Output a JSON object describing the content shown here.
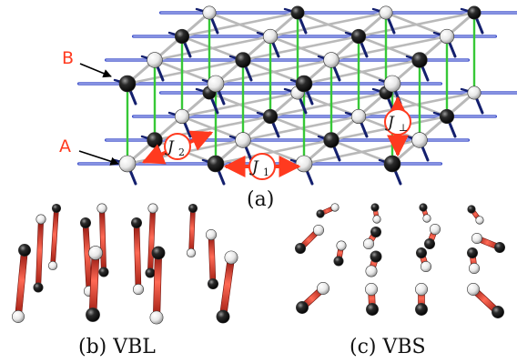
{
  "panels": {
    "a": {
      "caption": "(a)"
    },
    "b": {
      "caption": "(b) VBL"
    },
    "c": {
      "caption": "(c) VBS"
    }
  },
  "sublattice_labels": {
    "b": "B",
    "a": "A"
  },
  "couplings": {
    "j2": {
      "symbol": "J",
      "sub": "2"
    },
    "j1": {
      "symbol": "J",
      "sub": "1"
    },
    "jperp": {
      "symbol": "J",
      "sub": "⊥"
    }
  },
  "colors": {
    "accent_red": "#ff3a1f",
    "bond_red": "#d9281b",
    "gray_bond": "#b9b9b9",
    "blue_bond": "#2b3fc4",
    "green_bond": "#37c837",
    "navy_stub": "#14206e"
  }
}
